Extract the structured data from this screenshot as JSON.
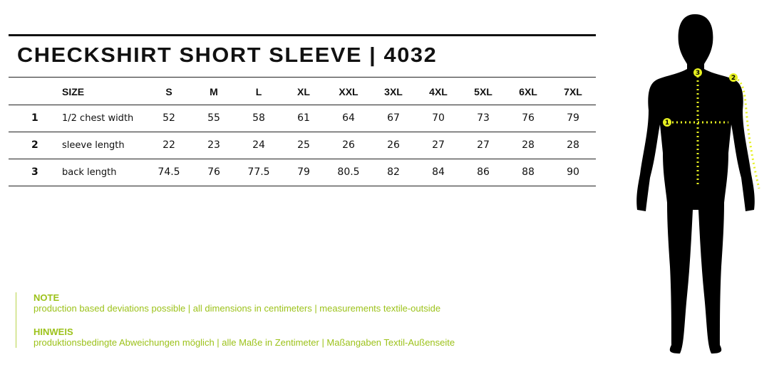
{
  "title": "CHECKSHIRT SHORT SLEEVE | 4032",
  "table": {
    "size_label": "SIZE",
    "sizes": [
      "S",
      "M",
      "L",
      "XL",
      "XXL",
      "3XL",
      "4XL",
      "5XL",
      "6XL",
      "7XL"
    ],
    "rows": [
      {
        "num": "1",
        "label": "1/2 chest width",
        "values": [
          "52",
          "55",
          "58",
          "61",
          "64",
          "67",
          "70",
          "73",
          "76",
          "79"
        ]
      },
      {
        "num": "2",
        "label": "sleeve length",
        "values": [
          "22",
          "23",
          "24",
          "25",
          "26",
          "26",
          "27",
          "27",
          "28",
          "28"
        ]
      },
      {
        "num": "3",
        "label": "back length",
        "values": [
          "74.5",
          "76",
          "77.5",
          "79",
          "80.5",
          "82",
          "84",
          "86",
          "88",
          "90"
        ]
      }
    ]
  },
  "notes": [
    {
      "title": "NOTE",
      "text": "production based deviations possible | all dimensions in centimeters  |  measurements textile-outside"
    },
    {
      "title": "HINWEIS",
      "text": "produktionsbedingte Abweichungen möglich | alle Maße in Zentimeter | Maßangaben Textil-Außenseite"
    }
  ],
  "figure": {
    "markers": [
      "1",
      "2",
      "3"
    ],
    "accent": "#e6f020",
    "silhouette": "#000000"
  }
}
